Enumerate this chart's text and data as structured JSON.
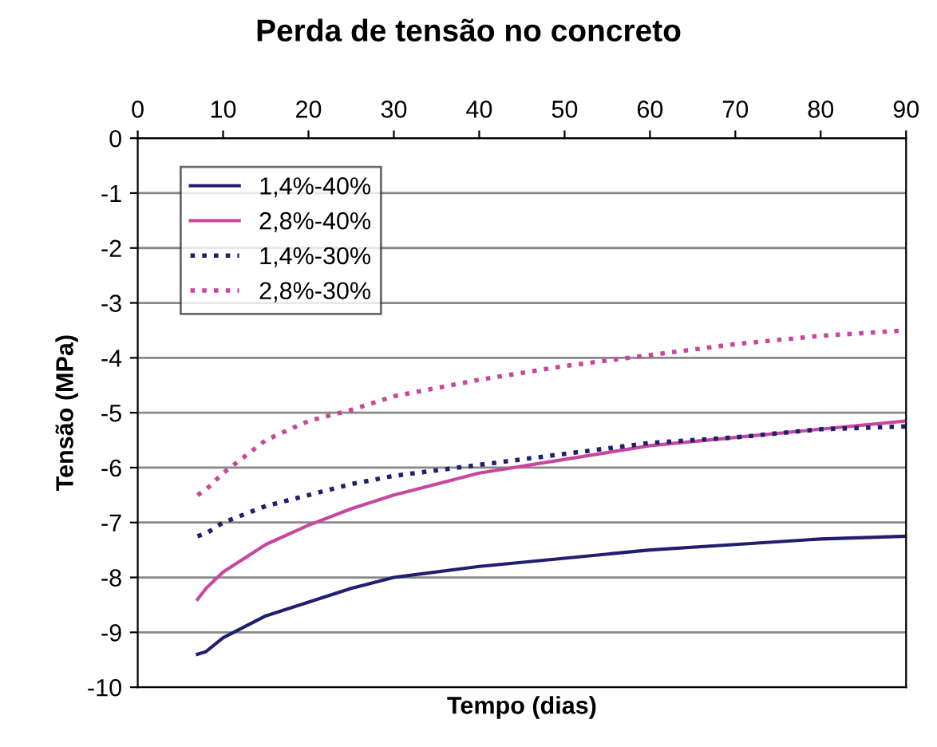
{
  "chart_data": {
    "type": "line",
    "title": "Perda de tensão no concreto",
    "xlabel": "Tempo (dias)",
    "ylabel": "Tensão (MPa)",
    "x": [
      7,
      8,
      10,
      15,
      20,
      25,
      30,
      40,
      50,
      60,
      70,
      80,
      90
    ],
    "series": [
      {
        "name": "1,4%-40%",
        "color": "#1f1f6e",
        "line_style": "solid",
        "values": [
          -9.4,
          -9.35,
          -9.1,
          -8.7,
          -8.45,
          -8.2,
          -8.0,
          -7.8,
          -7.65,
          -7.5,
          -7.4,
          -7.3,
          -7.25
        ]
      },
      {
        "name": "2,8%-40%",
        "color": "#c8469e",
        "line_style": "solid",
        "values": [
          -8.4,
          -8.2,
          -7.9,
          -7.4,
          -7.05,
          -6.75,
          -6.5,
          -6.1,
          -5.85,
          -5.6,
          -5.45,
          -5.3,
          -5.15
        ]
      },
      {
        "name": "1,4%-30%",
        "color": "#1f1f6e",
        "line_style": "dotted",
        "values": [
          -7.25,
          -7.2,
          -7.0,
          -6.7,
          -6.5,
          -6.3,
          -6.15,
          -5.95,
          -5.75,
          -5.55,
          -5.45,
          -5.3,
          -5.25
        ]
      },
      {
        "name": "2,8%-30%",
        "color": "#c8469e",
        "line_style": "dotted",
        "values": [
          -6.5,
          -6.4,
          -6.1,
          -5.5,
          -5.15,
          -4.95,
          -4.7,
          -4.4,
          -4.15,
          -3.95,
          -3.75,
          -3.6,
          -3.5
        ]
      }
    ],
    "xlim": [
      0,
      90
    ],
    "xticks": [
      0,
      10,
      20,
      30,
      40,
      50,
      60,
      70,
      80,
      90
    ],
    "ylim": [
      -10,
      0
    ],
    "yticks": [
      -10,
      -9,
      -8,
      -7,
      -6,
      -5,
      -4,
      -3,
      -2,
      -1,
      0
    ],
    "grid": "y",
    "legend": "top left",
    "marker": "none"
  }
}
